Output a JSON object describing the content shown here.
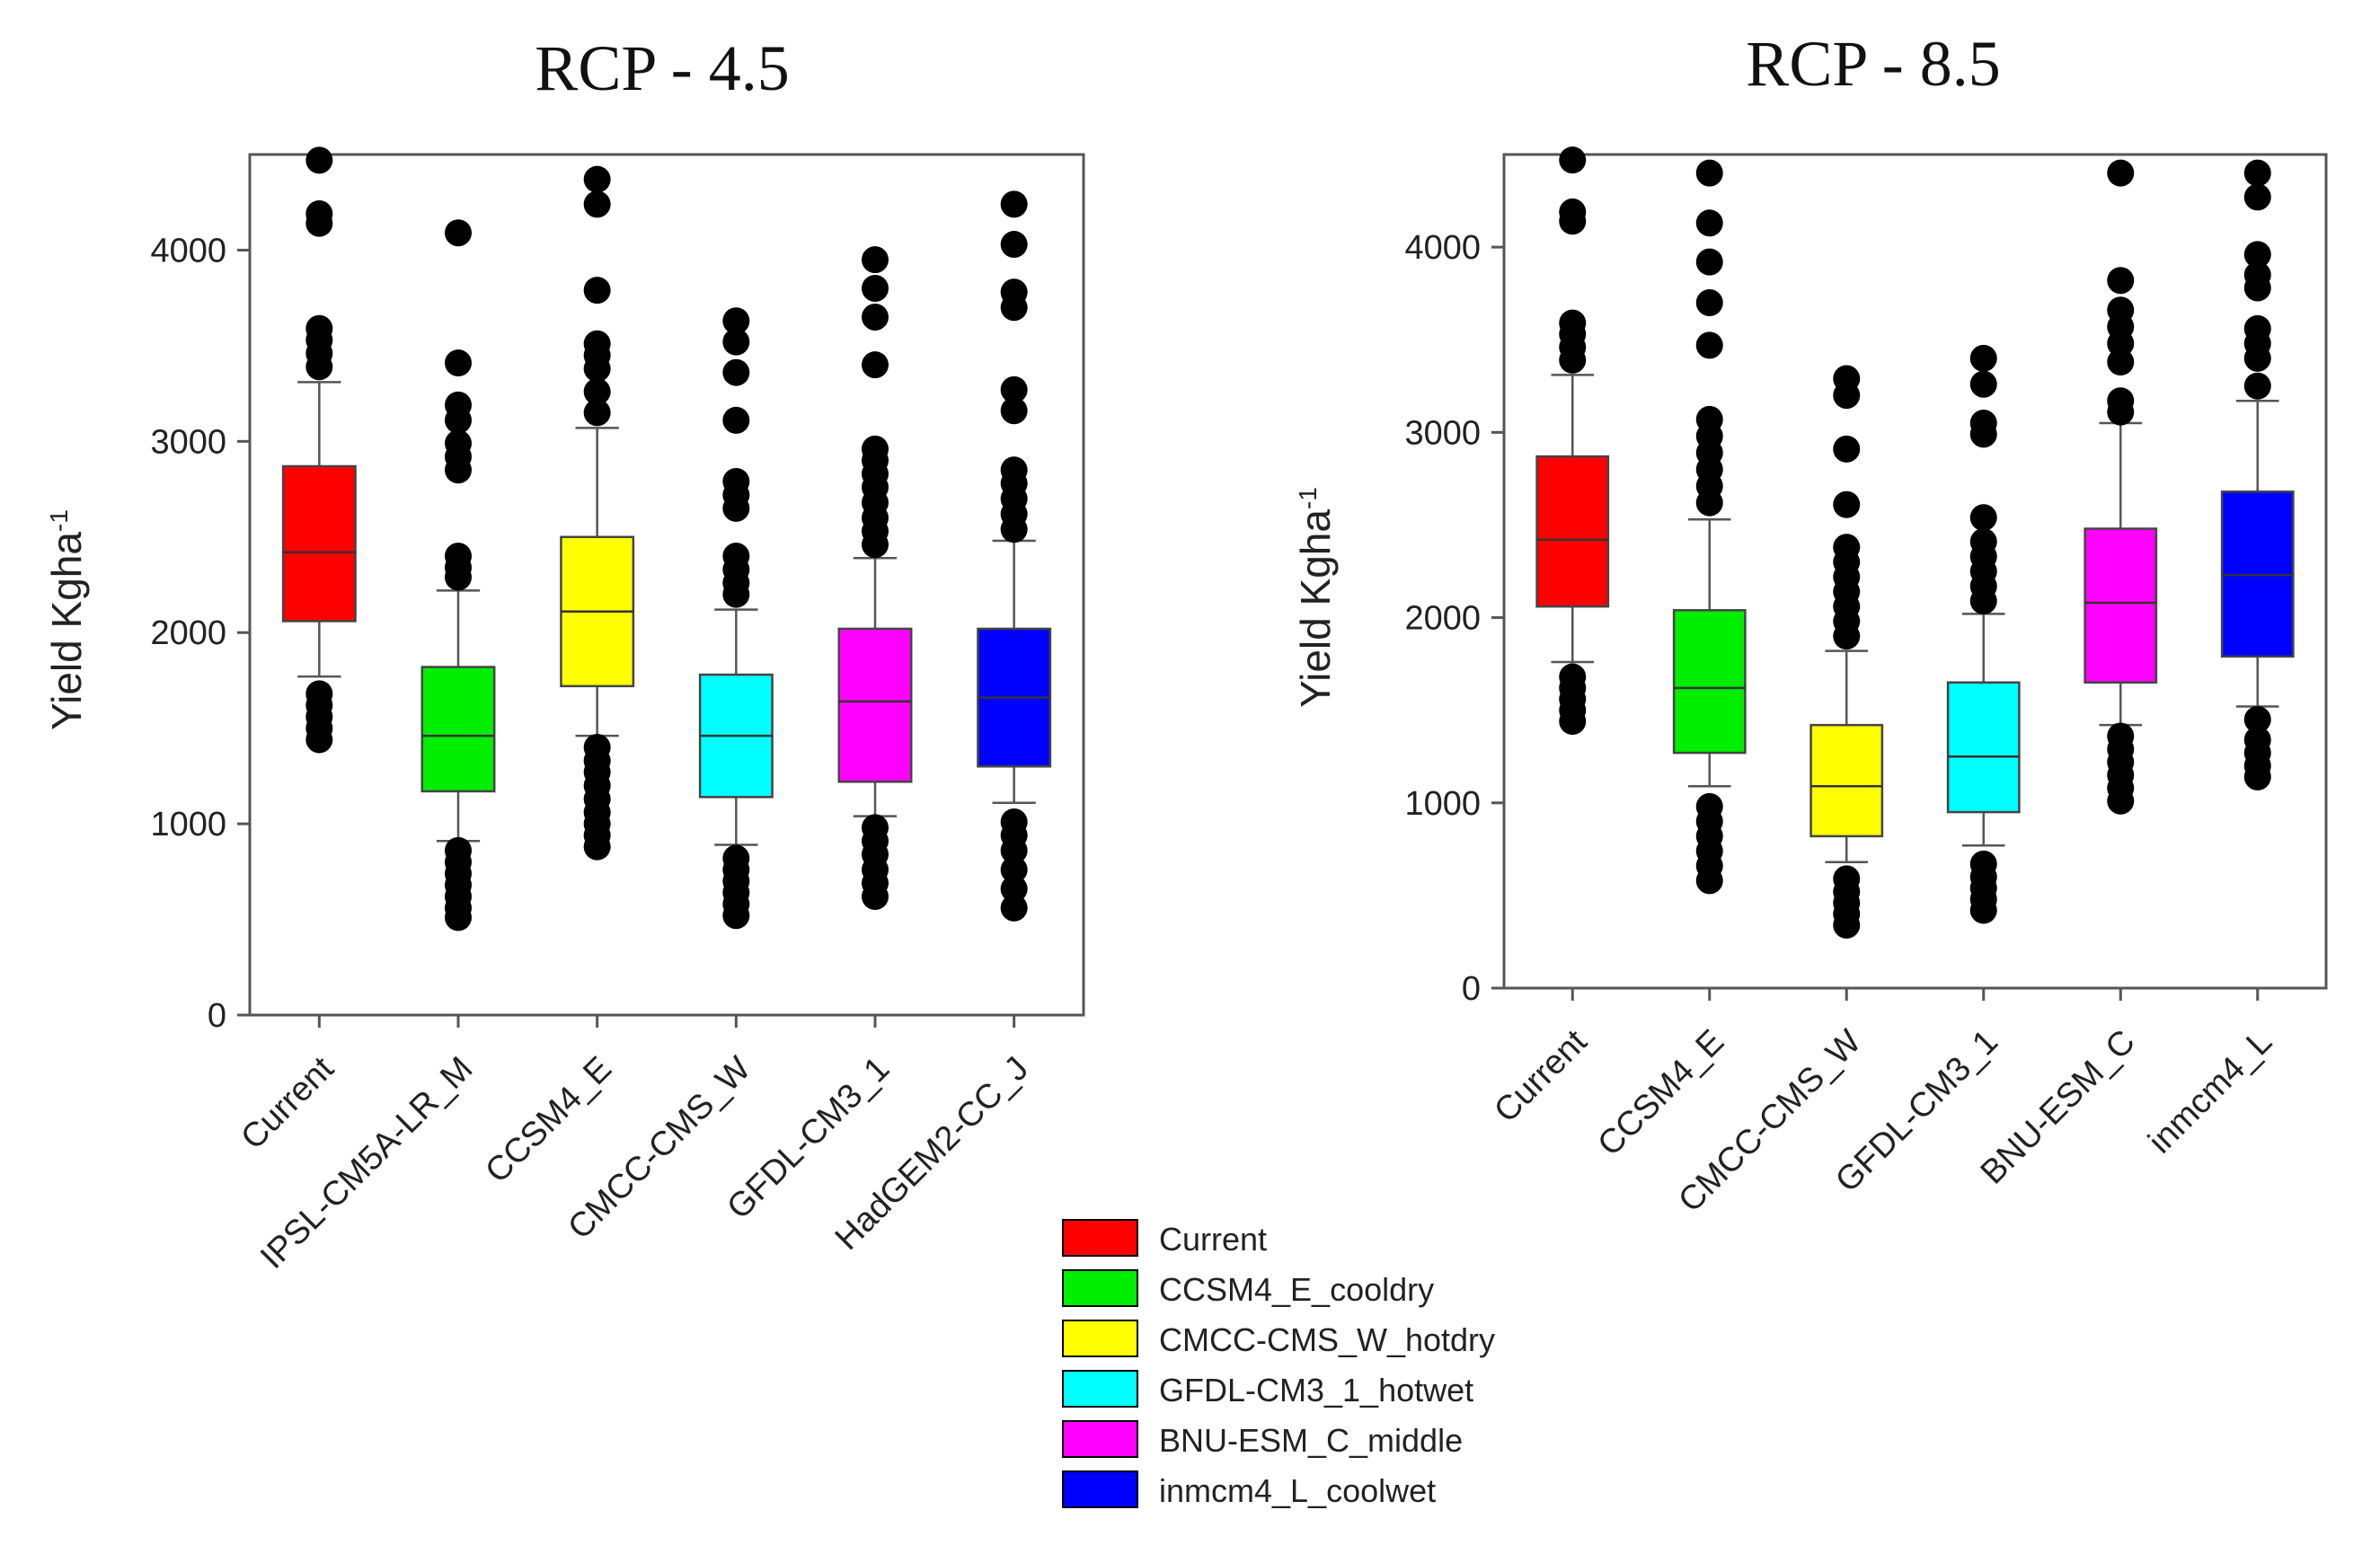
{
  "chart_data": [
    {
      "type": "box",
      "title": "RCP - 4.5",
      "ylabel": "Yield Kgha",
      "ylabel_sup": "-1",
      "ylim": [
        0,
        4500
      ],
      "yticks": [
        0,
        1000,
        2000,
        3000,
        4000
      ],
      "boxes": [
        {
          "label": "Current",
          "color": "#ff0000",
          "q1": 2060,
          "median": 2420,
          "q3": 2870,
          "whisker_low": 1770,
          "whisker_high": 3310,
          "outliers": [
            1440,
            1500,
            1560,
            1620,
            1680,
            3390,
            3460,
            3530,
            3590,
            4140,
            4190,
            4470
          ]
        },
        {
          "label": "IPSL-CM5A-LR_M",
          "color": "#00ee00",
          "q1": 1170,
          "median": 1460,
          "q3": 1820,
          "whisker_low": 910,
          "whisker_high": 2220,
          "outliers": [
            510,
            560,
            620,
            680,
            740,
            800,
            860,
            2290,
            2340,
            2400,
            2850,
            2920,
            2990,
            3110,
            3190,
            3410,
            4090
          ]
        },
        {
          "label": "CCSM4_E",
          "color": "#ffff00",
          "q1": 1720,
          "median": 2110,
          "q3": 2500,
          "whisker_low": 1460,
          "whisker_high": 3070,
          "outliers": [
            880,
            940,
            1000,
            1060,
            1130,
            1200,
            1270,
            1330,
            1400,
            3150,
            3260,
            3380,
            3450,
            3510,
            3790,
            4240,
            4370
          ]
        },
        {
          "label": "CMCC-CMS_W",
          "color": "#00ffff",
          "q1": 1140,
          "median": 1460,
          "q3": 1780,
          "whisker_low": 890,
          "whisker_high": 2120,
          "outliers": [
            520,
            580,
            640,
            700,
            760,
            820,
            2200,
            2260,
            2330,
            2400,
            2650,
            2720,
            2790,
            3110,
            3360,
            3520,
            3630
          ]
        },
        {
          "label": "GFDL-CM3_1",
          "color": "#ff00ff",
          "q1": 1220,
          "median": 1640,
          "q3": 2020,
          "whisker_low": 1040,
          "whisker_high": 2390,
          "outliers": [
            620,
            690,
            760,
            840,
            910,
            980,
            2460,
            2530,
            2600,
            2680,
            2760,
            2830,
            2900,
            2960,
            3400,
            3650,
            3800,
            3950
          ]
        },
        {
          "label": "HadGEM2-CC_J",
          "color": "#0000ff",
          "q1": 1300,
          "median": 1660,
          "q3": 2020,
          "whisker_low": 1110,
          "whisker_high": 2480,
          "outliers": [
            560,
            660,
            760,
            860,
            940,
            1010,
            2540,
            2620,
            2700,
            2780,
            2850,
            3160,
            3270,
            3700,
            3780,
            4030,
            4240
          ]
        }
      ]
    },
    {
      "type": "box",
      "title": "RCP - 8.5",
      "ylabel": "Yield Kgha",
      "ylabel_sup": "-1",
      "ylim": [
        0,
        4500
      ],
      "yticks": [
        0,
        1000,
        2000,
        3000,
        4000
      ],
      "boxes": [
        {
          "label": "Current",
          "color": "#ff0000",
          "q1": 2060,
          "median": 2420,
          "q3": 2870,
          "whisker_low": 1760,
          "whisker_high": 3310,
          "outliers": [
            1440,
            1500,
            1560,
            1620,
            1680,
            3390,
            3460,
            3530,
            3590,
            4140,
            4190,
            4470
          ]
        },
        {
          "label": "CCSM4_E",
          "color": "#00ee00",
          "q1": 1270,
          "median": 1620,
          "q3": 2040,
          "whisker_low": 1090,
          "whisker_high": 2530,
          "outliers": [
            580,
            660,
            740,
            820,
            900,
            980,
            2620,
            2710,
            2800,
            2890,
            2980,
            3070,
            3470,
            3700,
            3920,
            4130,
            4400
          ]
        },
        {
          "label": "CMCC-CMS_W",
          "color": "#ffff00",
          "q1": 820,
          "median": 1090,
          "q3": 1420,
          "whisker_low": 680,
          "whisker_high": 1820,
          "outliers": [
            340,
            400,
            460,
            520,
            590,
            1900,
            1980,
            2060,
            2140,
            2220,
            2300,
            2380,
            2610,
            2910,
            3200,
            3290
          ]
        },
        {
          "label": "GFDL-CM3_1",
          "color": "#00ffff",
          "q1": 950,
          "median": 1250,
          "q3": 1650,
          "whisker_low": 770,
          "whisker_high": 2020,
          "outliers": [
            420,
            480,
            540,
            600,
            670,
            2090,
            2170,
            2250,
            2330,
            2410,
            2540,
            2990,
            3050,
            3260,
            3400
          ]
        },
        {
          "label": "BNU-ESM_C",
          "color": "#ff00ff",
          "q1": 1650,
          "median": 2080,
          "q3": 2480,
          "whisker_low": 1420,
          "whisker_high": 3050,
          "outliers": [
            1010,
            1080,
            1150,
            1220,
            1290,
            1360,
            3110,
            3170,
            3380,
            3480,
            3570,
            3660,
            3820,
            4400
          ]
        },
        {
          "label": "inmcm4_L",
          "color": "#0000ff",
          "q1": 1790,
          "median": 2230,
          "q3": 2680,
          "whisker_low": 1520,
          "whisker_high": 3170,
          "outliers": [
            1140,
            1200,
            1270,
            1340,
            1450,
            3250,
            3400,
            3480,
            3560,
            3780,
            3850,
            3960,
            4270,
            4400
          ]
        }
      ]
    }
  ],
  "legend": [
    {
      "label": "Current",
      "color": "#ff0000"
    },
    {
      "label": "CCSM4_E_cooldry",
      "color": "#00ee00"
    },
    {
      "label": "CMCC-CMS_W_hotdry",
      "color": "#ffff00"
    },
    {
      "label": "GFDL-CM3_1_hotwet",
      "color": "#00ffff"
    },
    {
      "label": "BNU-ESM_C_middle",
      "color": "#ff00ff"
    },
    {
      "label": "inmcm4_L_coolwet",
      "color": "#0000ff"
    }
  ]
}
